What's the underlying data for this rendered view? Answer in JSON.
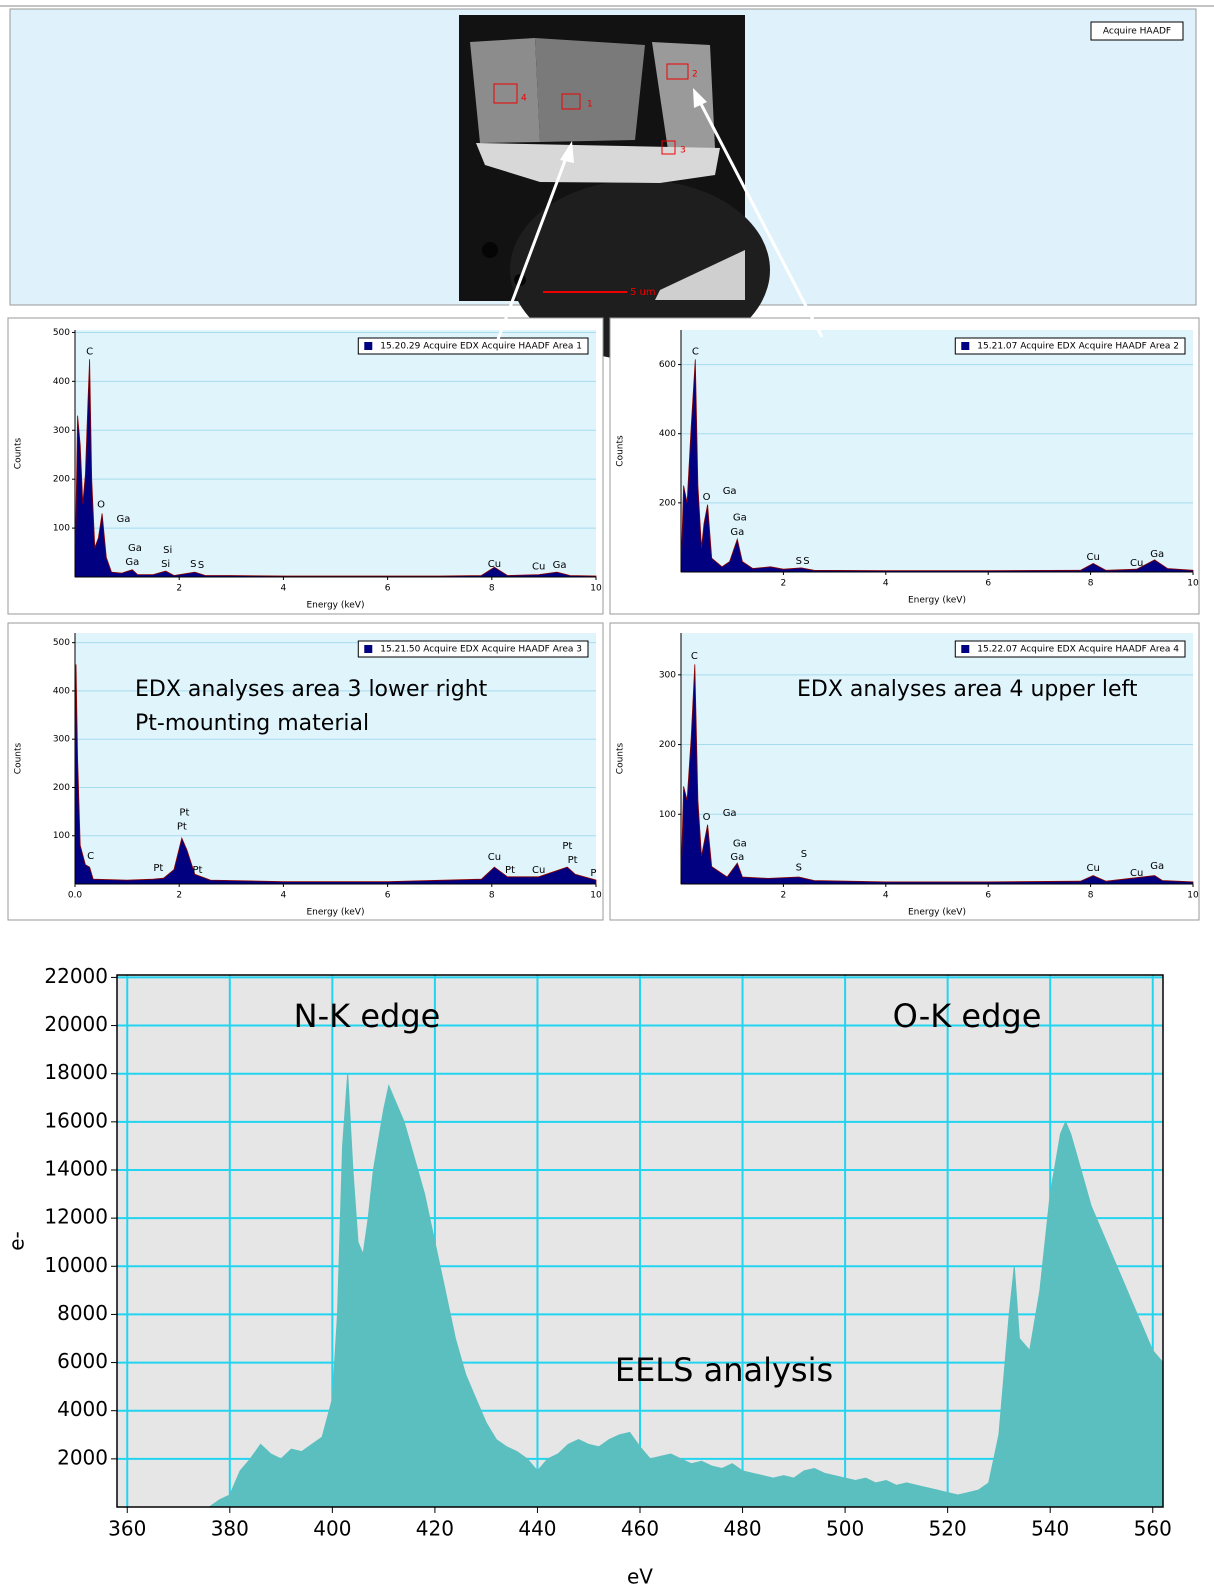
{
  "image_panel": {
    "legend": "Acquire HAADF",
    "area_labels": [
      "1",
      "2",
      "3",
      "4"
    ],
    "scale_bar": "5 um"
  },
  "chart_data": [
    {
      "type": "area",
      "x_label": "Energy (keV)",
      "y_label": "Counts",
      "legend": "upper right",
      "grid": "y",
      "xlim": [
        0,
        10
      ],
      "ylim": [
        0,
        505
      ],
      "xticks": [
        2,
        4,
        6,
        8,
        10
      ],
      "yticks": [
        100,
        200,
        300,
        400,
        500
      ],
      "x": [
        0,
        0.05,
        0.1,
        0.15,
        0.2,
        0.25,
        0.28,
        0.32,
        0.38,
        0.45,
        0.52,
        0.6,
        0.7,
        0.9,
        1.1,
        1.2,
        1.5,
        1.74,
        1.9,
        2.3,
        2.5,
        3,
        4,
        5,
        6,
        7,
        7.8,
        8.05,
        8.3,
        8.9,
        9.25,
        9.5,
        10
      ],
      "series": [
        {
          "name": "15.20.29 Acquire EDX Acquire HAADF Area 1",
          "color": "#000080",
          "values": [
            0,
            330,
            270,
            150,
            210,
            360,
            445,
            200,
            60,
            80,
            130,
            40,
            10,
            8,
            15,
            5,
            5,
            12,
            3,
            10,
            3,
            3,
            2,
            2,
            2,
            2,
            3,
            20,
            3,
            5,
            10,
            3,
            2
          ]
        }
      ],
      "peak_labels": [
        {
          "text": "C",
          "x": 0.28,
          "y": 461
        },
        {
          "text": "O",
          "x": 0.5,
          "y": 148
        },
        {
          "text": "Ga",
          "x": 0.93,
          "y": 119
        },
        {
          "text": "Ga",
          "x": 1.15,
          "y": 59
        },
        {
          "text": "Ga",
          "x": 1.1,
          "y": 31
        },
        {
          "text": "Si",
          "x": 1.78,
          "y": 55
        },
        {
          "text": "Si",
          "x": 1.74,
          "y": 27
        },
        {
          "text": "S",
          "x": 2.27,
          "y": 27
        },
        {
          "text": "S",
          "x": 2.42,
          "y": 25
        },
        {
          "text": "Cu",
          "x": 8.05,
          "y": 27
        },
        {
          "text": "Cu",
          "x": 8.9,
          "y": 21
        },
        {
          "text": "Ga",
          "x": 9.3,
          "y": 25
        }
      ]
    },
    {
      "type": "area",
      "x_label": "Energy (keV)",
      "y_label": "Counts",
      "legend": "upper right",
      "grid": "y",
      "xlim": [
        0,
        10
      ],
      "ylim": [
        0,
        700
      ],
      "xticks": [
        2,
        4,
        6,
        8,
        10
      ],
      "yticks": [
        200,
        400,
        600
      ],
      "x": [
        0,
        0.05,
        0.12,
        0.2,
        0.28,
        0.33,
        0.4,
        0.45,
        0.52,
        0.6,
        0.8,
        0.95,
        1.1,
        1.2,
        1.4,
        1.75,
        2,
        2.35,
        2.6,
        4,
        6,
        7.8,
        8.05,
        8.3,
        8.9,
        9.25,
        9.5,
        10
      ],
      "series": [
        {
          "name": "15.21.07 Acquire EDX Acquire HAADF Area 2",
          "color": "#000080",
          "values": [
            0,
            250,
            200,
            420,
            615,
            250,
            70,
            140,
            195,
            40,
            15,
            30,
            95,
            30,
            10,
            15,
            8,
            12,
            5,
            4,
            4,
            5,
            25,
            5,
            8,
            35,
            10,
            5
          ]
        }
      ],
      "peak_labels": [
        {
          "text": "C",
          "x": 0.28,
          "y": 638
        },
        {
          "text": "O",
          "x": 0.5,
          "y": 217
        },
        {
          "text": "Ga",
          "x": 0.95,
          "y": 235
        },
        {
          "text": "Ga",
          "x": 1.15,
          "y": 157
        },
        {
          "text": "Ga",
          "x": 1.1,
          "y": 116
        },
        {
          "text": "S",
          "x": 2.3,
          "y": 32
        },
        {
          "text": "S",
          "x": 2.45,
          "y": 32
        },
        {
          "text": "Cu",
          "x": 8.05,
          "y": 43
        },
        {
          "text": "Cu",
          "x": 8.9,
          "y": 26
        },
        {
          "text": "Ga",
          "x": 9.3,
          "y": 52
        }
      ]
    },
    {
      "type": "area",
      "x_label": "Energy (keV)",
      "y_label": "Counts",
      "legend": "upper right",
      "grid": "y",
      "xlim": [
        0,
        10
      ],
      "ylim": [
        0,
        520
      ],
      "xticks": [
        {
          "value": 0,
          "label": "0.0"
        },
        2,
        4,
        6,
        8,
        10
      ],
      "yticks": [
        100,
        200,
        300,
        400,
        500
      ],
      "x": [
        0,
        0.02,
        0.05,
        0.1,
        0.2,
        0.28,
        0.35,
        1,
        1.5,
        1.7,
        1.9,
        2.05,
        2.15,
        2.3,
        2.6,
        4,
        6,
        7.8,
        8.05,
        8.3,
        8.9,
        9.45,
        9.6,
        10
      ],
      "series": [
        {
          "name": "15.21.50 Acquire EDX Acquire HAADF Area 3",
          "color": "#000080",
          "values": [
            0,
            455,
            260,
            80,
            40,
            35,
            10,
            8,
            10,
            12,
            30,
            95,
            70,
            20,
            8,
            5,
            5,
            10,
            35,
            15,
            15,
            35,
            20,
            8
          ]
        }
      ],
      "peak_labels": [
        {
          "text": "Pt",
          "x": 2.1,
          "y": 148
        },
        {
          "text": "Pt",
          "x": 2.05,
          "y": 119
        },
        {
          "text": "C",
          "x": 0.3,
          "y": 58
        },
        {
          "text": "Pt",
          "x": 1.6,
          "y": 33
        },
        {
          "text": "Pt",
          "x": 2.35,
          "y": 29
        },
        {
          "text": "Cu",
          "x": 8.05,
          "y": 56
        },
        {
          "text": "Pt",
          "x": 8.35,
          "y": 29
        },
        {
          "text": "Cu",
          "x": 8.9,
          "y": 29
        },
        {
          "text": "Pt",
          "x": 9.45,
          "y": 79
        },
        {
          "text": "Pt",
          "x": 9.55,
          "y": 50
        },
        {
          "text": "P",
          "x": 9.95,
          "y": 23
        }
      ],
      "annotations": [
        "EDX analyses area 3 lower right",
        "Pt-mounting material"
      ]
    },
    {
      "type": "area",
      "x_label": "Energy (keV)",
      "y_label": "Counts",
      "legend": "upper right",
      "grid": "y",
      "xlim": [
        0,
        10
      ],
      "ylim": [
        0,
        360
      ],
      "xticks": [
        2,
        4,
        6,
        8,
        10
      ],
      "yticks": [
        100,
        200,
        300
      ],
      "x": [
        0,
        0.05,
        0.12,
        0.2,
        0.27,
        0.33,
        0.4,
        0.52,
        0.6,
        0.9,
        1.1,
        1.2,
        1.7,
        2.3,
        2.6,
        4,
        6,
        7.8,
        8.05,
        8.3,
        9.25,
        9.4,
        10
      ],
      "series": [
        {
          "name": "15.22.07 Acquire EDX Acquire HAADF Area 4",
          "color": "#000080",
          "values": [
            0,
            140,
            120,
            210,
            315,
            120,
            40,
            85,
            25,
            10,
            30,
            10,
            8,
            10,
            5,
            3,
            3,
            4,
            12,
            4,
            12,
            5,
            3
          ]
        }
      ],
      "peak_labels": [
        {
          "text": "C",
          "x": 0.26,
          "y": 327
        },
        {
          "text": "O",
          "x": 0.5,
          "y": 96
        },
        {
          "text": "Ga",
          "x": 0.95,
          "y": 102
        },
        {
          "text": "Ga",
          "x": 1.15,
          "y": 58
        },
        {
          "text": "Ga",
          "x": 1.1,
          "y": 39
        },
        {
          "text": "S",
          "x": 2.4,
          "y": 43
        },
        {
          "text": "S",
          "x": 2.3,
          "y": 24
        },
        {
          "text": "Cu",
          "x": 8.05,
          "y": 23
        },
        {
          "text": "Cu",
          "x": 8.9,
          "y": 16
        },
        {
          "text": "Ga",
          "x": 9.3,
          "y": 26
        }
      ],
      "annotations": [
        "EDX analyses area 4 upper left"
      ]
    },
    {
      "type": "area",
      "x_label": "eV",
      "y_label": "e-",
      "grid": "both",
      "xlim": [
        358,
        562
      ],
      "ylim": [
        0,
        22100
      ],
      "xticks": [
        360,
        380,
        400,
        420,
        440,
        460,
        480,
        500,
        520,
        540,
        560
      ],
      "yticks": [
        2000,
        4000,
        6000,
        8000,
        10000,
        12000,
        14000,
        16000,
        18000,
        20000,
        22000
      ],
      "x": [
        376,
        378,
        380,
        382,
        384,
        386,
        388,
        390,
        392,
        394,
        396,
        398,
        400,
        401,
        402,
        403,
        404,
        405,
        406,
        407,
        408,
        410,
        411,
        412,
        414,
        416,
        418,
        420,
        422,
        424,
        426,
        428,
        430,
        432,
        434,
        436,
        438,
        440,
        442,
        444,
        446,
        448,
        450,
        452,
        454,
        456,
        458,
        460,
        462,
        464,
        466,
        468,
        470,
        472,
        474,
        476,
        478,
        480,
        482,
        484,
        486,
        488,
        490,
        492,
        494,
        496,
        498,
        500,
        502,
        504,
        506,
        508,
        510,
        512,
        514,
        516,
        518,
        520,
        522,
        524,
        526,
        528,
        530,
        532,
        533,
        534,
        536,
        538,
        540,
        542,
        543,
        544,
        546,
        548,
        550,
        552,
        554,
        556,
        558,
        560,
        562
      ],
      "series": [
        {
          "name": "EELS",
          "color": "#5bbfbf",
          "values": [
            0,
            300,
            500,
            1500,
            2000,
            2600,
            2200,
            2000,
            2400,
            2300,
            2600,
            2900,
            4500,
            8000,
            15000,
            18000,
            14000,
            11000,
            10500,
            12000,
            14000,
            16500,
            17500,
            17000,
            16000,
            14500,
            13000,
            11000,
            9000,
            7000,
            5500,
            4500,
            3500,
            2800,
            2500,
            2300,
            2000,
            1500,
            2000,
            2200,
            2600,
            2800,
            2600,
            2500,
            2800,
            3000,
            3100,
            2500,
            2000,
            2100,
            2200,
            2000,
            1800,
            1900,
            1700,
            1600,
            1800,
            1500,
            1400,
            1300,
            1200,
            1300,
            1200,
            1500,
            1600,
            1400,
            1300,
            1200,
            1100,
            1200,
            1000,
            1100,
            900,
            1000,
            900,
            800,
            700,
            600,
            500,
            600,
            700,
            1000,
            3000,
            8000,
            10000,
            7000,
            6500,
            9000,
            13000,
            15500,
            16000,
            15500,
            14000,
            12500,
            11500,
            10500,
            9500,
            8500,
            7500,
            6500,
            6000
          ]
        }
      ],
      "annotations": [
        "N-K edge",
        "O-K edge",
        "EELS analysis"
      ]
    }
  ]
}
